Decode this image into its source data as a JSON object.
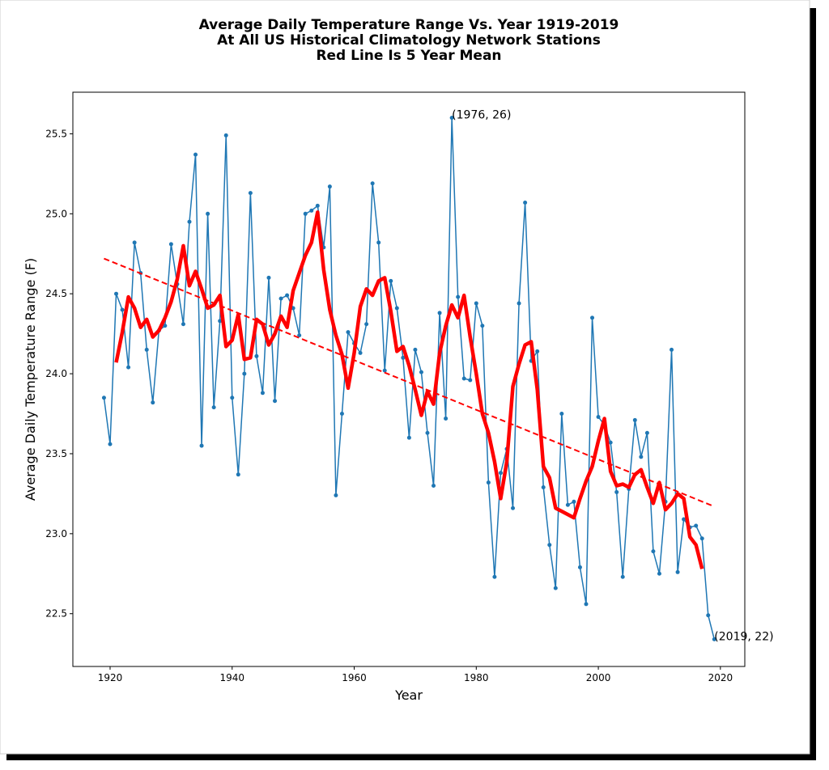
{
  "chart_data": {
    "type": "line",
    "title": [
      "Average Daily Temperature Range Vs. Year 1919-2019",
      "At All US Historical Climatology Network Stations",
      "Red Line Is 5 Year Mean"
    ],
    "xlabel": "Year",
    "ylabel": "Average Daily Temperature Range (F)",
    "xlim": [
      1913.9,
      2024.0
    ],
    "ylim": [
      22.17,
      25.76
    ],
    "xticks": [
      1920,
      1940,
      1960,
      1980,
      2000,
      2020
    ],
    "yticks": [
      22.5,
      {
        "value": 23,
        "label": "23.0"
      },
      23.5,
      {
        "value": 24,
        "label": "24.0"
      },
      24.5,
      {
        "value": 25,
        "label": "25.0"
      },
      25.5
    ],
    "grid": false,
    "series": [
      {
        "color": "#1f77b4",
        "style": "solid",
        "linewidth": 1.5,
        "markers": true,
        "x": [
          1919,
          1920,
          1921,
          1922,
          1923,
          1924,
          1925,
          1926,
          1927,
          1928,
          1929,
          1930,
          1931,
          1932,
          1933,
          1934,
          1935,
          1936,
          1937,
          1938,
          1939,
          1940,
          1941,
          1942,
          1943,
          1944,
          1945,
          1946,
          1947,
          1948,
          1949,
          1950,
          1951,
          1952,
          1953,
          1954,
          1955,
          1956,
          1957,
          1958,
          1959,
          1960,
          1961,
          1962,
          1963,
          1964,
          1965,
          1966,
          1967,
          1968,
          1969,
          1970,
          1971,
          1972,
          1973,
          1974,
          1975,
          1976,
          1977,
          1978,
          1979,
          1980,
          1981,
          1982,
          1983,
          1984,
          1985,
          1986,
          1987,
          1988,
          1989,
          1990,
          1991,
          1992,
          1993,
          1994,
          1995,
          1996,
          1997,
          1998,
          1999,
          2000,
          2001,
          2002,
          2003,
          2004,
          2005,
          2006,
          2007,
          2008,
          2009,
          2010,
          2011,
          2012,
          2013,
          2014,
          2015,
          2016,
          2017,
          2018,
          2019
        ],
        "values": [
          23.85,
          23.56,
          24.5,
          24.4,
          24.04,
          24.82,
          24.63,
          24.15,
          23.82,
          24.27,
          24.3,
          24.81,
          24.56,
          24.31,
          24.95,
          25.37,
          23.55,
          25.0,
          23.79,
          24.33,
          25.49,
          23.85,
          23.37,
          24.0,
          25.13,
          24.11,
          23.88,
          24.6,
          23.83,
          24.47,
          24.49,
          24.41,
          24.24,
          25.0,
          25.02,
          25.05,
          24.79,
          25.17,
          23.24,
          23.75,
          24.26,
          24.19,
          24.13,
          24.31,
          25.19,
          24.82,
          24.02,
          24.58,
          24.41,
          24.1,
          23.6,
          24.15,
          24.01,
          23.63,
          23.3,
          24.38,
          23.72,
          25.6,
          24.48,
          23.97,
          23.96,
          24.44,
          24.3,
          23.32,
          22.73,
          23.38,
          23.53,
          23.16,
          24.44,
          25.07,
          24.08,
          24.14,
          23.29,
          22.93,
          22.66,
          23.75,
          23.18,
          23.2,
          22.79,
          22.56,
          24.35,
          23.73,
          23.68,
          23.57,
          23.26,
          22.73,
          23.28,
          23.71,
          23.48,
          23.63,
          22.89,
          22.75,
          23.2,
          24.15,
          22.76,
          23.09,
          23.04,
          23.05,
          22.97,
          22.49,
          22.34
        ]
      },
      {
        "color": "#ff0000",
        "style": "solid",
        "linewidth": 4.5,
        "markers": false,
        "x": [
          1921,
          1922,
          1923,
          1924,
          1925,
          1926,
          1927,
          1928,
          1929,
          1930,
          1931,
          1932,
          1933,
          1934,
          1935,
          1936,
          1937,
          1938,
          1939,
          1940,
          1941,
          1942,
          1943,
          1944,
          1945,
          1946,
          1947,
          1948,
          1949,
          1950,
          1951,
          1952,
          1953,
          1954,
          1955,
          1956,
          1957,
          1958,
          1959,
          1960,
          1961,
          1962,
          1963,
          1964,
          1965,
          1966,
          1967,
          1968,
          1969,
          1970,
          1971,
          1972,
          1973,
          1974,
          1975,
          1976,
          1977,
          1978,
          1979,
          1980,
          1981,
          1982,
          1983,
          1984,
          1985,
          1986,
          1987,
          1988,
          1989,
          1990,
          1991,
          1992,
          1993,
          1994,
          1995,
          1996,
          1997,
          1998,
          1999,
          2000,
          2001,
          2002,
          2003,
          2004,
          2005,
          2006,
          2007,
          2008,
          2009,
          2010,
          2011,
          2012,
          2013,
          2014,
          2015,
          2016,
          2017
        ],
        "values": [
          24.07,
          24.26,
          24.48,
          24.41,
          24.29,
          24.34,
          24.23,
          24.27,
          24.35,
          24.45,
          24.59,
          24.8,
          24.55,
          24.64,
          24.53,
          24.41,
          24.43,
          24.49,
          24.17,
          24.21,
          24.37,
          24.09,
          24.1,
          24.34,
          24.31,
          24.18,
          24.25,
          24.36,
          24.29,
          24.52,
          24.63,
          24.74,
          24.82,
          25.01,
          24.65,
          24.4,
          24.24,
          24.12,
          23.91,
          24.13,
          24.42,
          24.53,
          24.49,
          24.58,
          24.6,
          24.39,
          24.14,
          24.17,
          24.05,
          23.9,
          23.74,
          23.89,
          23.81,
          24.13,
          24.3,
          24.43,
          24.35,
          24.49,
          24.23,
          24.0,
          23.75,
          23.63,
          23.45,
          23.22,
          23.45,
          23.92,
          24.06,
          24.18,
          24.2,
          23.9,
          23.42,
          23.35,
          23.16,
          23.14,
          23.12,
          23.1,
          23.22,
          23.33,
          23.42,
          23.58,
          23.72,
          23.39,
          23.3,
          23.31,
          23.29,
          23.37,
          23.4,
          23.29,
          23.19,
          23.32,
          23.15,
          23.19,
          23.25,
          23.22,
          22.98,
          22.93,
          22.78
        ]
      },
      {
        "color": "#ff0000",
        "style": "dashed",
        "linewidth": 2,
        "markers": false,
        "x": [
          1919,
          2019
        ],
        "values": [
          24.72,
          23.17
        ]
      }
    ],
    "annotations": [
      {
        "text": "(1976, 26)",
        "x": 1976,
        "y": 25.6
      },
      {
        "text": "(2019, 22)",
        "x": 2019,
        "y": 22.34
      }
    ]
  }
}
